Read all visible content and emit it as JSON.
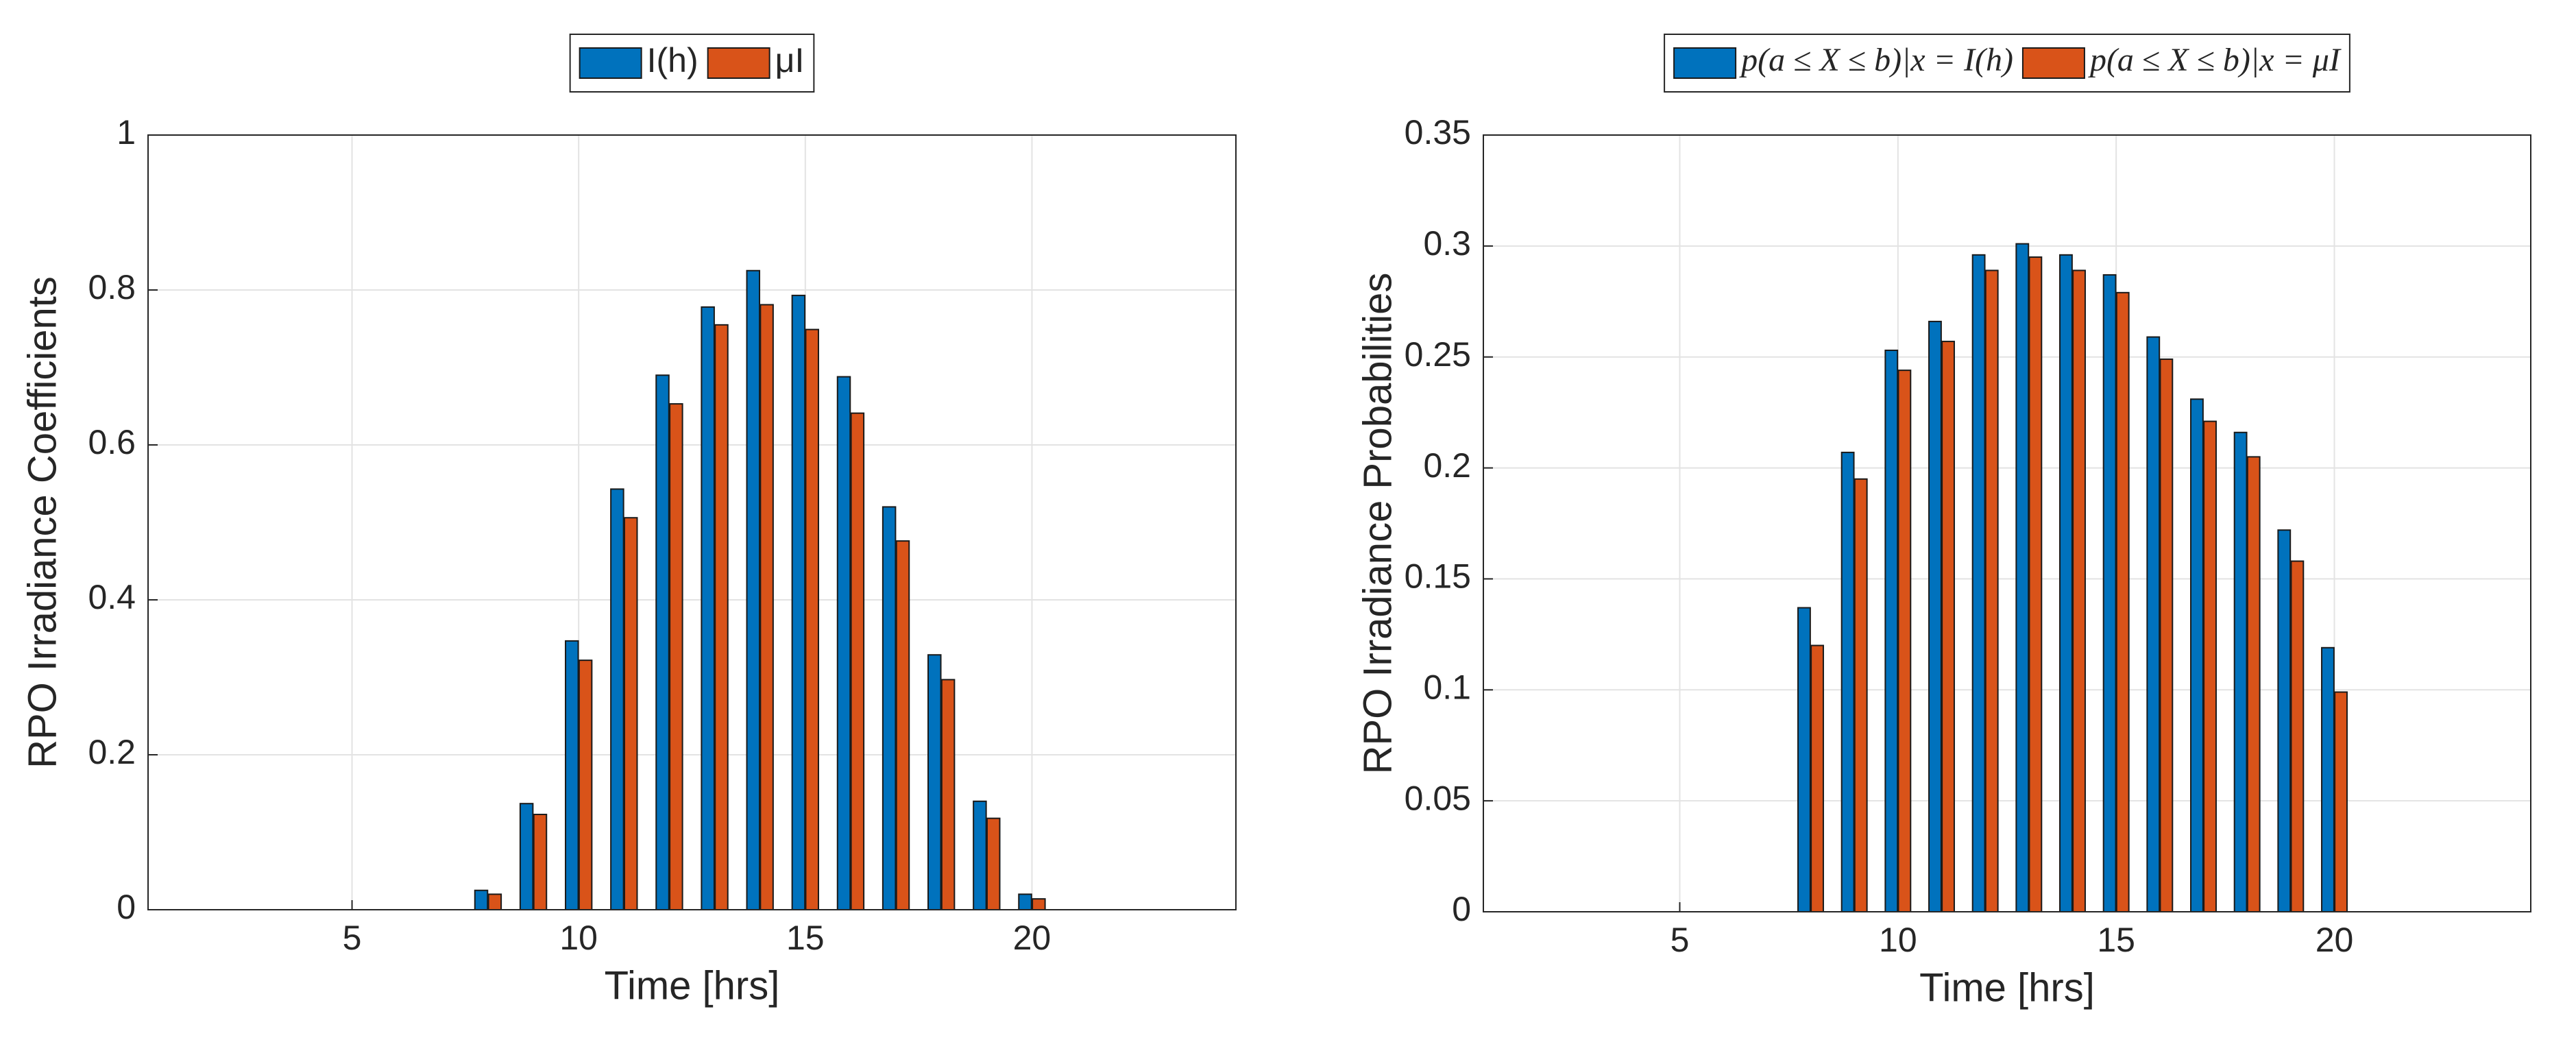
{
  "chart_data": [
    {
      "type": "bar",
      "ylabel": "RPO Irradiance Coefficients",
      "xlabel": "Time [hrs]",
      "x": [
        1,
        2,
        3,
        4,
        5,
        6,
        7,
        8,
        9,
        10,
        11,
        12,
        13,
        14,
        15,
        16,
        17,
        18,
        19,
        20,
        21,
        22,
        23,
        24
      ],
      "xlim": [
        0.5,
        24.5
      ],
      "xticks": [
        5,
        10,
        15,
        20
      ],
      "ylim": [
        0,
        1
      ],
      "yticks": [
        0,
        0.2,
        0.4,
        0.6,
        0.8,
        1
      ],
      "grid": true,
      "legend": "top",
      "series": [
        {
          "name": "I(h)",
          "color": "#0072bd",
          "values": [
            0,
            0,
            0,
            0,
            0,
            0,
            0,
            0.025,
            0.137,
            0.347,
            0.543,
            0.69,
            0.778,
            0.825,
            0.793,
            0.688,
            0.52,
            0.329,
            0.14,
            0.02,
            0,
            0,
            0,
            0
          ]
        },
        {
          "name": "μI",
          "color": "#d95319",
          "values": [
            0,
            0,
            0,
            0,
            0,
            0,
            0,
            0.02,
            0.123,
            0.322,
            0.506,
            0.653,
            0.755,
            0.781,
            0.749,
            0.641,
            0.476,
            0.297,
            0.118,
            0.014,
            0,
            0,
            0,
            0
          ]
        }
      ]
    },
    {
      "type": "bar",
      "ylabel": "RPO Irradiance Probabilities",
      "xlabel": "Time [hrs]",
      "x": [
        1,
        2,
        3,
        4,
        5,
        6,
        7,
        8,
        9,
        10,
        11,
        12,
        13,
        14,
        15,
        16,
        17,
        18,
        19,
        20,
        21,
        22,
        23,
        24
      ],
      "xlim": [
        0.5,
        24.5
      ],
      "xticks": [
        5,
        10,
        15,
        20
      ],
      "ylim": [
        0,
        0.35
      ],
      "yticks": [
        0,
        0.05,
        0.1,
        0.15,
        0.2,
        0.25,
        0.3,
        0.35
      ],
      "grid": true,
      "legend": "top",
      "series": [
        {
          "name": "p(a ≤ X ≤ b)|x = I(h)",
          "color": "#0072bd",
          "values": [
            0,
            0,
            0,
            0,
            0,
            0,
            0,
            0.137,
            0.207,
            0.253,
            0.266,
            0.296,
            0.301,
            0.296,
            0.287,
            0.259,
            0.231,
            0.216,
            0.172,
            0.119,
            0,
            0,
            0,
            0
          ]
        },
        {
          "name": "p(a ≤ X ≤ b)|x = μI",
          "color": "#d95319",
          "values": [
            0,
            0,
            0,
            0,
            0,
            0,
            0,
            0.12,
            0.195,
            0.244,
            0.257,
            0.289,
            0.295,
            0.289,
            0.279,
            0.249,
            0.221,
            0.205,
            0.158,
            0.099,
            0,
            0,
            0,
            0
          ]
        }
      ]
    }
  ]
}
